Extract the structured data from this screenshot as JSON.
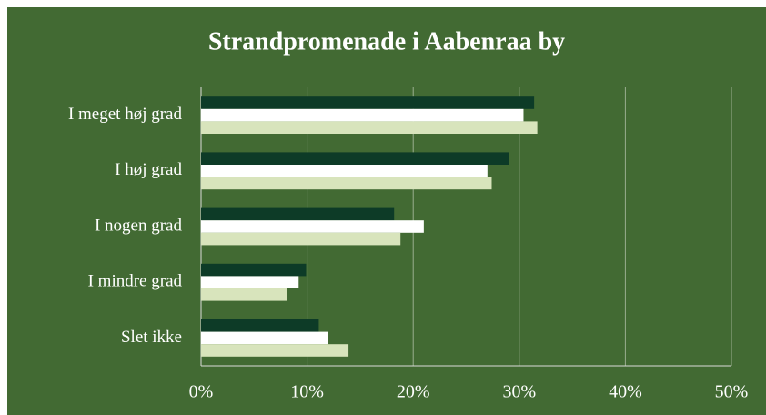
{
  "chart_data": {
    "type": "hbar",
    "title": "Strandpromenade i Aabenraa by",
    "categories": [
      "I meget høj grad",
      "I høj grad",
      "I nogen grad",
      "I mindre grad",
      "Slet ikke"
    ],
    "series": [
      {
        "color": "#0d3b27",
        "values": [
          31.4,
          29.0,
          18.2,
          9.9,
          11.1
        ]
      },
      {
        "color": "#ffffff",
        "values": [
          30.4,
          27.0,
          21.0,
          9.2,
          12.0
        ]
      },
      {
        "color": "#d8e4bc",
        "values": [
          31.7,
          27.4,
          18.8,
          8.1,
          13.9
        ]
      }
    ],
    "xlim": [
      0,
      50
    ],
    "xticks": [
      {
        "value": 0,
        "label": "0%"
      },
      {
        "value": 10,
        "label": "10%"
      },
      {
        "value": 20,
        "label": "20%"
      },
      {
        "value": 30,
        "label": "30%"
      },
      {
        "value": 40,
        "label": "40%"
      },
      {
        "value": 50,
        "label": "50%"
      }
    ],
    "grid": true,
    "background": "#426a33"
  }
}
